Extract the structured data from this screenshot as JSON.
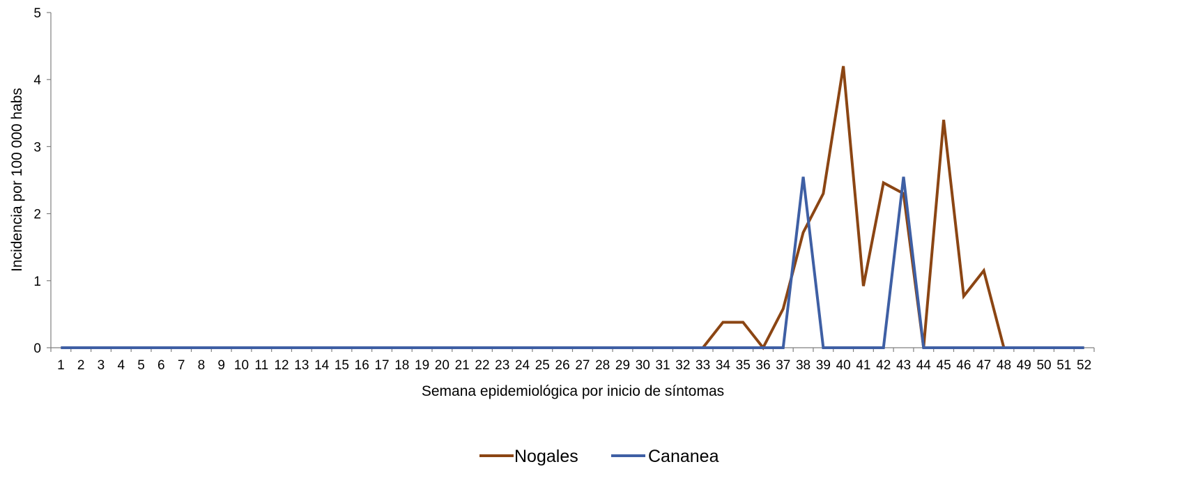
{
  "chart_data": {
    "type": "line",
    "title": "",
    "xlabel": "Semana epidemiológica por inicio de síntomas",
    "ylabel": "Incidencia por 100 000 habs",
    "ylim": [
      0,
      5
    ],
    "yticks": [
      "0",
      "1",
      "2",
      "3",
      "4",
      "5"
    ],
    "grid": false,
    "legend_position": "bottom",
    "categories": [
      "1",
      "2",
      "3",
      "4",
      "5",
      "6",
      "7",
      "8",
      "9",
      "10",
      "11",
      "12",
      "13",
      "14",
      "15",
      "16",
      "17",
      "18",
      "19",
      "20",
      "21",
      "22",
      "23",
      "24",
      "25",
      "26",
      "27",
      "28",
      "29",
      "30",
      "31",
      "32",
      "33",
      "34",
      "35",
      "36",
      "37",
      "38",
      "39",
      "40",
      "41",
      "42",
      "43",
      "44",
      "45",
      "46",
      "47",
      "48",
      "49",
      "50",
      "51",
      "52"
    ],
    "series": [
      {
        "name": "Nogales",
        "color": "#8B4513",
        "values": [
          0,
          0,
          0,
          0,
          0,
          0,
          0,
          0,
          0,
          0,
          0,
          0,
          0,
          0,
          0,
          0,
          0,
          0,
          0,
          0,
          0,
          0,
          0,
          0,
          0,
          0,
          0,
          0,
          0,
          0,
          0,
          0,
          0,
          0.38,
          0.38,
          0,
          0.58,
          1.72,
          2.3,
          4.2,
          0.92,
          2.46,
          2.3,
          0,
          3.4,
          0.77,
          1.15,
          0,
          0,
          0,
          0,
          0
        ]
      },
      {
        "name": "Cananea",
        "color": "#3E5FA4",
        "values": [
          0,
          0,
          0,
          0,
          0,
          0,
          0,
          0,
          0,
          0,
          0,
          0,
          0,
          0,
          0,
          0,
          0,
          0,
          0,
          0,
          0,
          0,
          0,
          0,
          0,
          0,
          0,
          0,
          0,
          0,
          0,
          0,
          0,
          0,
          0,
          0,
          0,
          2.55,
          0,
          0,
          0,
          0,
          2.55,
          0,
          0,
          0,
          0,
          0,
          0,
          0,
          0,
          0
        ]
      }
    ]
  }
}
